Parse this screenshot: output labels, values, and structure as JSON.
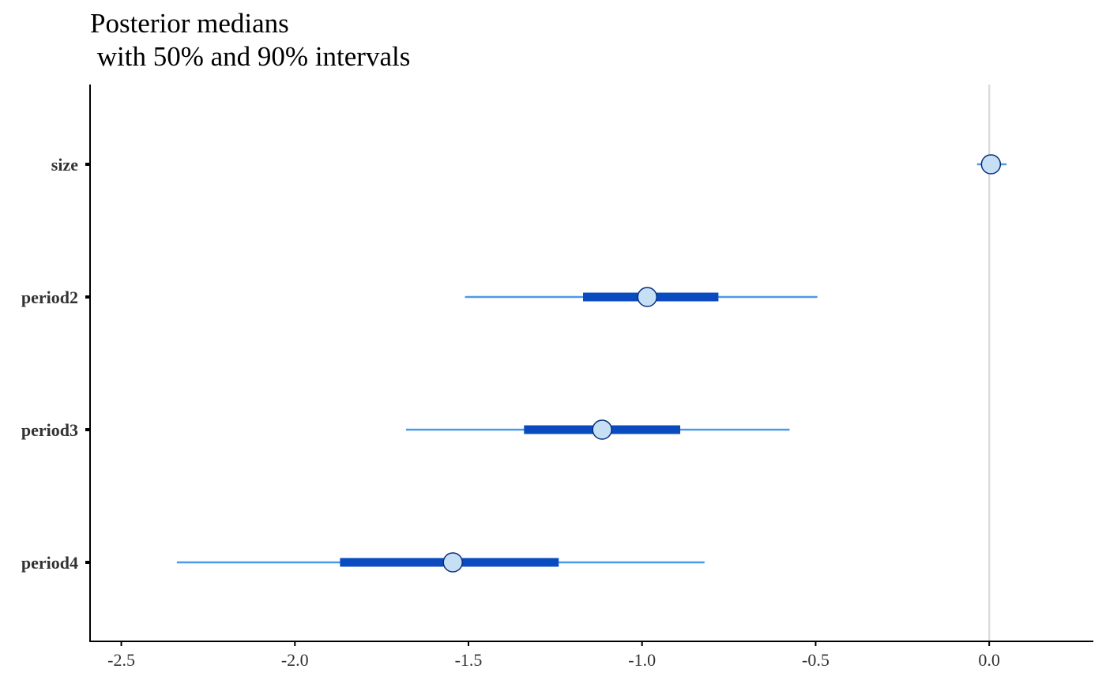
{
  "chart_data": {
    "type": "interval",
    "title_lines": [
      "Posterior medians",
      " with 50% and 90% intervals"
    ],
    "xlim": [
      -2.59,
      0.3
    ],
    "x_ticks": [
      -2.5,
      -2.0,
      -1.5,
      -1.0,
      -0.5,
      0.0
    ],
    "x_tick_labels": [
      "-2.5",
      "-2.0",
      "-1.5",
      "-1.0",
      "-0.5",
      "0.0"
    ],
    "reference_line": 0.0,
    "parameters": [
      {
        "name": "size",
        "median": 0.005,
        "inner": [
          -0.005,
          0.015
        ],
        "outer": [
          -0.035,
          0.05
        ]
      },
      {
        "name": "period2",
        "median": -0.985,
        "inner": [
          -1.17,
          -0.78
        ],
        "outer": [
          -1.51,
          -0.495
        ]
      },
      {
        "name": "period3",
        "median": -1.115,
        "inner": [
          -1.34,
          -0.89
        ],
        "outer": [
          -1.68,
          -0.575
        ]
      },
      {
        "name": "period4",
        "median": -1.545,
        "inner": [
          -1.87,
          -1.24
        ],
        "outer": [
          -2.34,
          -0.82
        ]
      }
    ],
    "colors": {
      "outer_line": "#4a9ae8",
      "inner_line": "#0a4cbf",
      "point_fill": "#c6dff5",
      "point_stroke": "#062f7a",
      "reference_line": "#dddddd",
      "axis": "#000000"
    },
    "grid": false,
    "legend": "none"
  }
}
